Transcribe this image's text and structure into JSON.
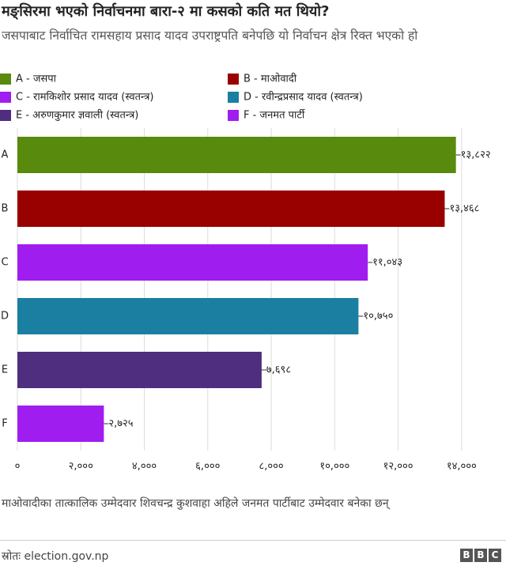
{
  "chart_data": {
    "type": "bar",
    "orientation": "horizontal",
    "title": "मङ्सिरमा भएको निर्वाचनमा बारा-२ मा कसको कति मत थियो?",
    "subtitle": "जसपाबाट निर्वाचित रामसहाय प्रसाद यादव उपराष्ट्रपति बनेपछि यो निर्वाचन क्षेत्र रिक्त भएको हो",
    "categories": [
      "A",
      "B",
      "C",
      "D",
      "E",
      "F"
    ],
    "legend": [
      "A - जसपा",
      "B - माओवादी",
      "C - रामकिशोर प्रसाद यादव (स्वतन्त्र)",
      "D - रवीन्द्रप्रसाद यादव (स्वतन्त्र)",
      "E - अरुणकुमार ज्ञवाली (स्वतन्त्र)",
      "F - जनमत पार्टी"
    ],
    "colors": [
      "#588a0e",
      "#990000",
      "#a01df0",
      "#1a7fa0",
      "#4f2d7f",
      "#a01df0"
    ],
    "values": [
      13822,
      13468,
      11043,
      10750,
      7698,
      2725
    ],
    "value_labels": [
      "१३,८२२",
      "१३,४६८",
      "११,०४३",
      "१०,७५०",
      "७,६९८",
      "२,७२५"
    ],
    "xlim": [
      0,
      15400
    ],
    "xticks": [
      {
        "value": 0,
        "label": "०"
      },
      {
        "value": 2000,
        "label": "२,०००"
      },
      {
        "value": 4000,
        "label": "४,०००"
      },
      {
        "value": 6000,
        "label": "६,०००"
      },
      {
        "value": 8000,
        "label": "८,०००"
      },
      {
        "value": 10000,
        "label": "१०,०००"
      },
      {
        "value": 12000,
        "label": "१२,०००"
      },
      {
        "value": 14000,
        "label": "१४,०००"
      }
    ],
    "grid": true,
    "note": "माओवादीका तात्कालिक उम्मेदवार शिवचन्द्र कुशवाहा अहिले जनमत पार्टीबाट उम्मेदवार बनेका छन्",
    "source": "स्रोतः election.gov.np",
    "logo": "BBC"
  }
}
